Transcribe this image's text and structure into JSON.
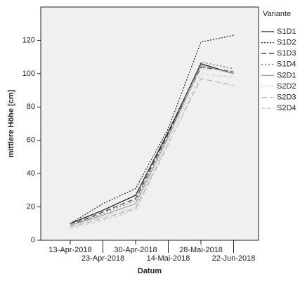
{
  "chart_data": {
    "type": "line",
    "x_label": "Datum",
    "y_label": "mittlere Höhe [cm]",
    "legend_title": "Variante",
    "categories": [
      "13-Apr-2018",
      "23-Apr-2018",
      "30-Apr-2018",
      "14-Mai-2018",
      "28-Mai-2018",
      "22-Jun-2018"
    ],
    "ylim": [
      0,
      140
    ],
    "yticks": [
      0,
      20,
      40,
      60,
      80,
      100,
      120
    ],
    "legend": "right",
    "series": [
      {
        "name": "S1D1",
        "color": "#222222",
        "dash": "none",
        "values": [
          10,
          18,
          27,
          65,
          106,
          100
        ]
      },
      {
        "name": "S1D2",
        "color": "#333333",
        "dash": "2,2",
        "values": [
          10,
          22,
          31,
          67,
          119,
          123
        ]
      },
      {
        "name": "S1D3",
        "color": "#444444",
        "dash": "7,4",
        "values": [
          9,
          17,
          25,
          64,
          104,
          101
        ]
      },
      {
        "name": "S1D4",
        "color": "#777777",
        "dash": "2,3",
        "values": [
          9,
          16,
          24,
          63,
          107,
          103
        ]
      },
      {
        "name": "S2D1",
        "color": "#a0a0a0",
        "dash": "none",
        "values": [
          9,
          15,
          22,
          62,
          105,
          100
        ]
      },
      {
        "name": "S2D2",
        "color": "#b0b0b0",
        "dash": "1,2",
        "values": [
          8,
          14,
          20,
          60,
          103,
          102
        ]
      },
      {
        "name": "S2D3",
        "color": "#b8b8b8",
        "dash": "8,4",
        "values": [
          8,
          13,
          19,
          58,
          97,
          93
        ]
      },
      {
        "name": "S2D4",
        "color": "#d0d0d0",
        "dash": "5,3",
        "values": [
          7,
          12,
          18,
          57,
          100,
          98
        ]
      }
    ]
  }
}
